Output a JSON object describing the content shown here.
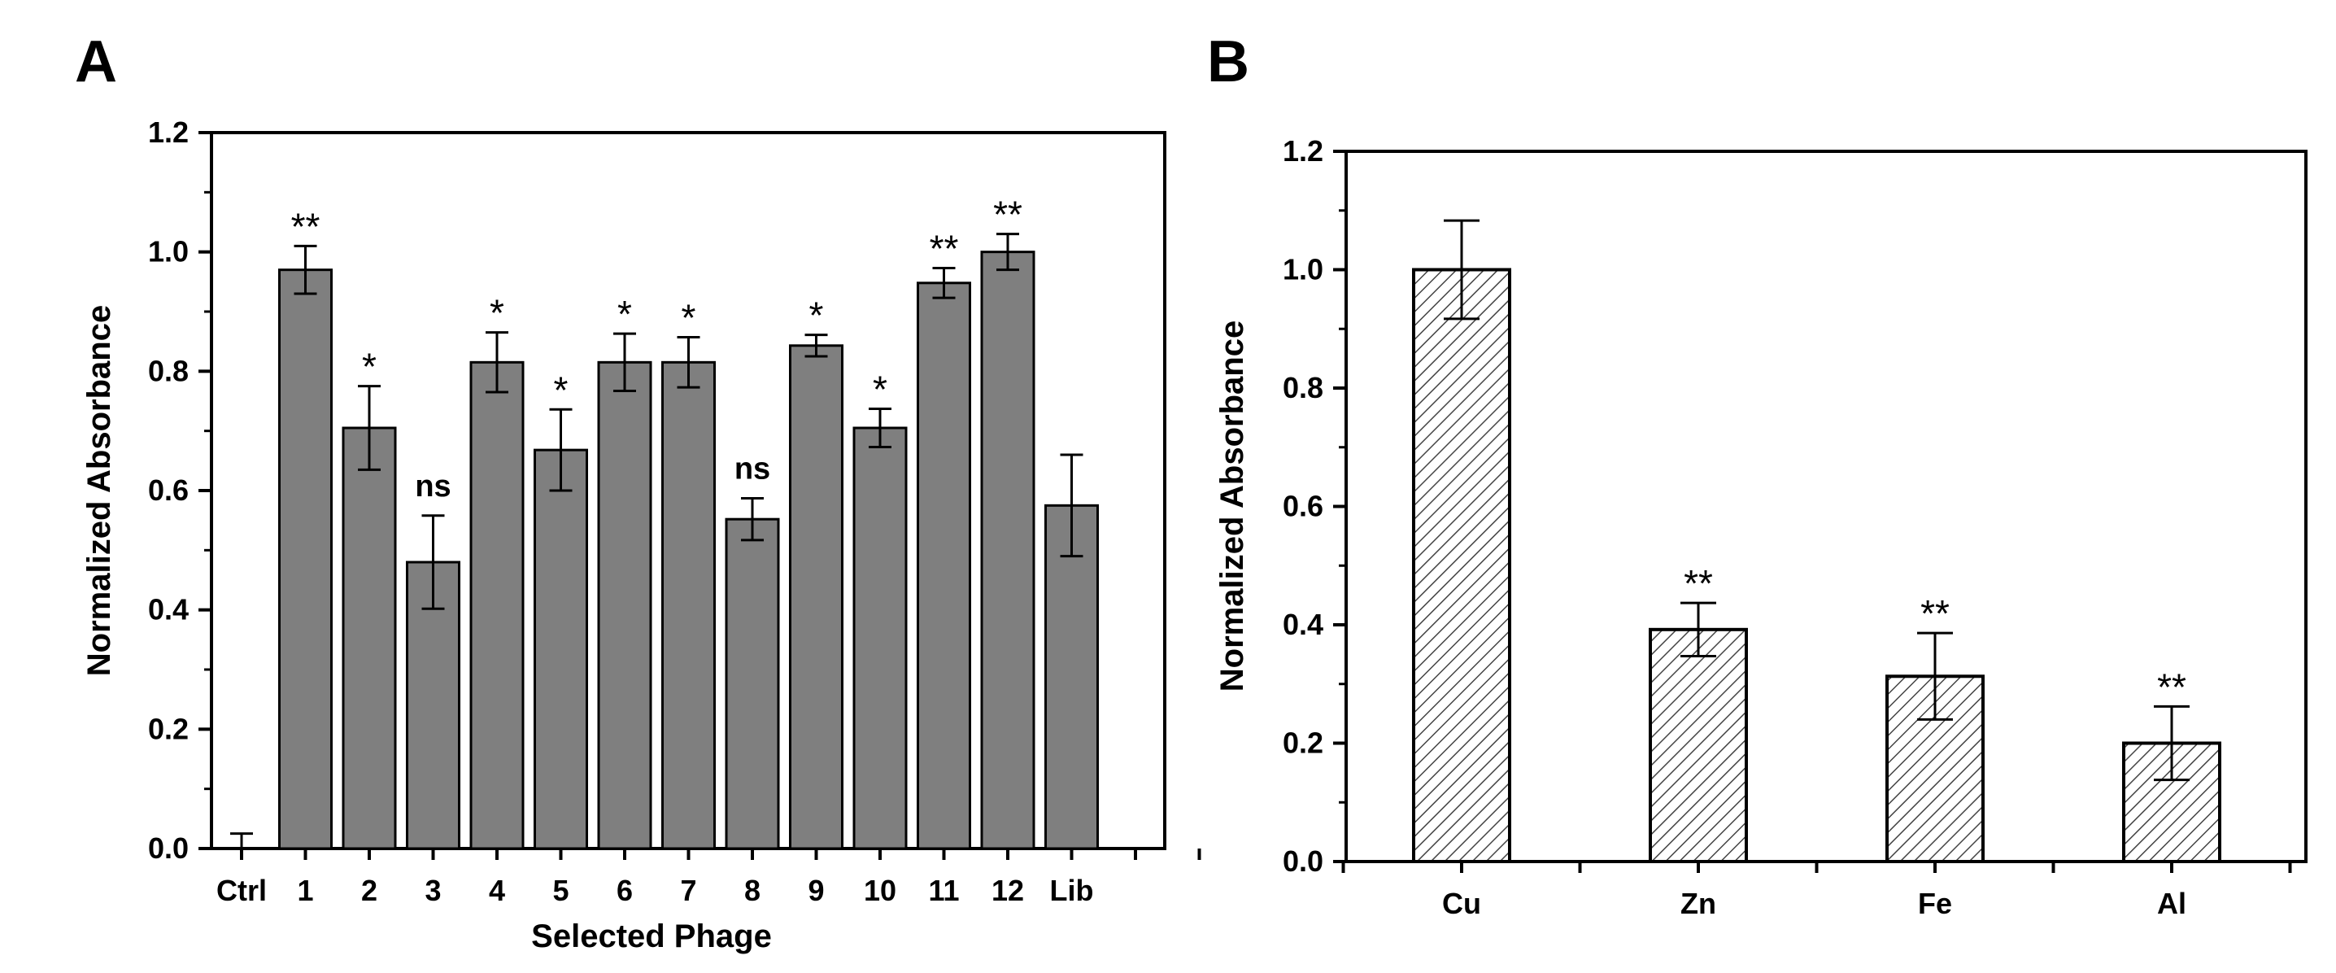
{
  "colors": {
    "barA": "#7f7f7f",
    "hatch": "#444444",
    "axis": "#000000"
  },
  "chart_data": [
    {
      "panel": "A",
      "type": "bar",
      "title": "",
      "xlabel": "Selected Phage",
      "ylabel": "Normalized Absorbance",
      "ylim": [
        0.0,
        1.2
      ],
      "yticks": [
        "0.0",
        "0.2",
        "0.4",
        "0.6",
        "0.8",
        "1.0",
        "1.2"
      ],
      "categories": [
        "Ctrl",
        "1",
        "2",
        "3",
        "4",
        "5",
        "6",
        "7",
        "8",
        "9",
        "10",
        "11",
        "12",
        "Lib"
      ],
      "values": [
        0.0,
        0.97,
        0.705,
        0.48,
        0.815,
        0.668,
        0.815,
        0.815,
        0.552,
        0.843,
        0.705,
        0.948,
        1.0,
        0.575
      ],
      "errors": [
        0.025,
        0.04,
        0.07,
        0.078,
        0.05,
        0.068,
        0.048,
        0.042,
        0.035,
        0.018,
        0.032,
        0.025,
        0.03,
        0.085
      ],
      "significance": [
        "",
        "**",
        "*",
        "ns",
        "*",
        "*",
        "*",
        "*",
        "ns",
        "*",
        "*",
        "**",
        "**",
        ""
      ]
    },
    {
      "panel": "B",
      "type": "bar",
      "title": "",
      "xlabel": "",
      "ylabel": "Normalized Absorbance",
      "ylim": [
        0.0,
        1.2
      ],
      "yticks": [
        "0.0",
        "0.2",
        "0.4",
        "0.6",
        "0.8",
        "1.0",
        "1.2"
      ],
      "categories": [
        "Cu",
        "Zn",
        "Fe",
        "Al"
      ],
      "values": [
        1.0,
        0.392,
        0.313,
        0.2
      ],
      "errors": [
        0.083,
        0.045,
        0.073,
        0.062
      ],
      "significance": [
        "",
        "**",
        "**",
        "**"
      ]
    }
  ]
}
